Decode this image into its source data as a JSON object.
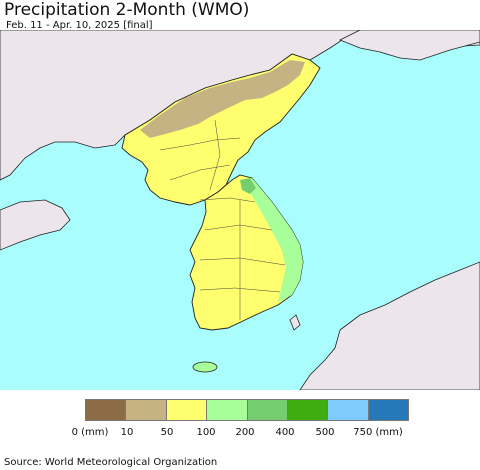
{
  "title": "Precipitation 2-Month (WMO)",
  "subtitle": "Feb. 11 - Apr. 10, 2025 [final]",
  "source": "Source: World Meteorological Organization",
  "colors": {
    "sea": "#a9fdfd",
    "foreign_land": "#ece6ec",
    "border_line": "#222222",
    "class_0_10": "#8b6c47",
    "class_10_50": "#c6b383",
    "class_50_100": "#fefe6e",
    "class_100_200": "#a8fe98",
    "class_200_400": "#74cd6f",
    "class_400_500": "#3fad10",
    "class_500_750": "#7fcbfd",
    "class_750_plus": "#2679b8"
  },
  "legend": {
    "swatches": [
      "#8b6c47",
      "#c6b383",
      "#fefe6e",
      "#a8fe98",
      "#74cd6f",
      "#3fad10",
      "#7fcbfd",
      "#2679b8"
    ],
    "labels": [
      "0 (mm)",
      "10",
      "50",
      "100",
      "200",
      "400",
      "500",
      "750 (mm)"
    ]
  }
}
